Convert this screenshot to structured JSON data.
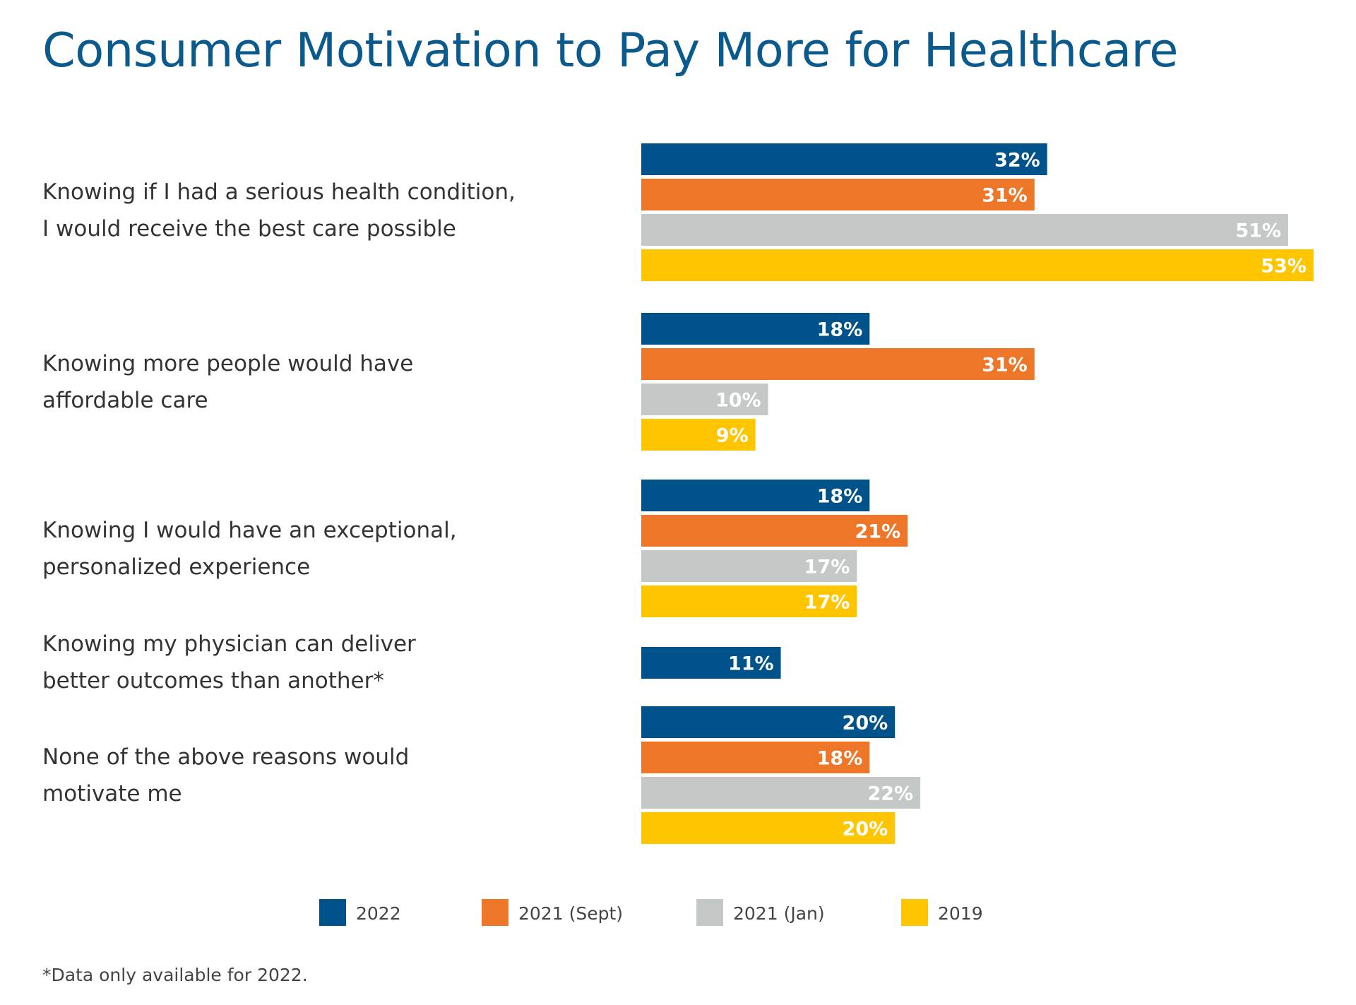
{
  "chart_data": {
    "type": "bar",
    "orientation": "horizontal",
    "title": "Consumer Motivation to Pay More for Healthcare",
    "categories": [
      [
        "Knowing if I had a serious health condition,",
        "I would receive the best care possible"
      ],
      [
        "Knowing more people would have",
        "affordable care"
      ],
      [
        "Knowing I would have an exceptional,",
        "personalized experience"
      ],
      [
        "Knowing my physician can deliver",
        "better outcomes than another*"
      ],
      [
        "None of the above reasons would",
        "motivate me"
      ]
    ],
    "series": [
      {
        "name": "2022",
        "color": "#00538a",
        "values": [
          32,
          18,
          18,
          11,
          20
        ],
        "labels": [
          "32%",
          "18%",
          "18%",
          "11%",
          "20%"
        ]
      },
      {
        "name": "2021 (Sept)",
        "color": "#ee7628",
        "values": [
          31,
          31,
          21,
          null,
          18
        ],
        "labels": [
          "31%",
          "31%",
          "21%",
          null,
          "18%"
        ]
      },
      {
        "name": "2021 (Jan)",
        "color": "#c4c8c7",
        "values": [
          51,
          10,
          17,
          null,
          22
        ],
        "labels": [
          "51%",
          "10%",
          "17%",
          null,
          "22%"
        ]
      },
      {
        "name": "2019",
        "color": "#ffc600",
        "values": [
          53,
          9,
          17,
          null,
          20
        ],
        "labels": [
          "53%",
          "9%",
          "17%",
          null,
          "20%"
        ]
      }
    ],
    "unit": "%",
    "legend_position": "bottom",
    "grid": false,
    "footnote": "*Data only available for 2022."
  }
}
